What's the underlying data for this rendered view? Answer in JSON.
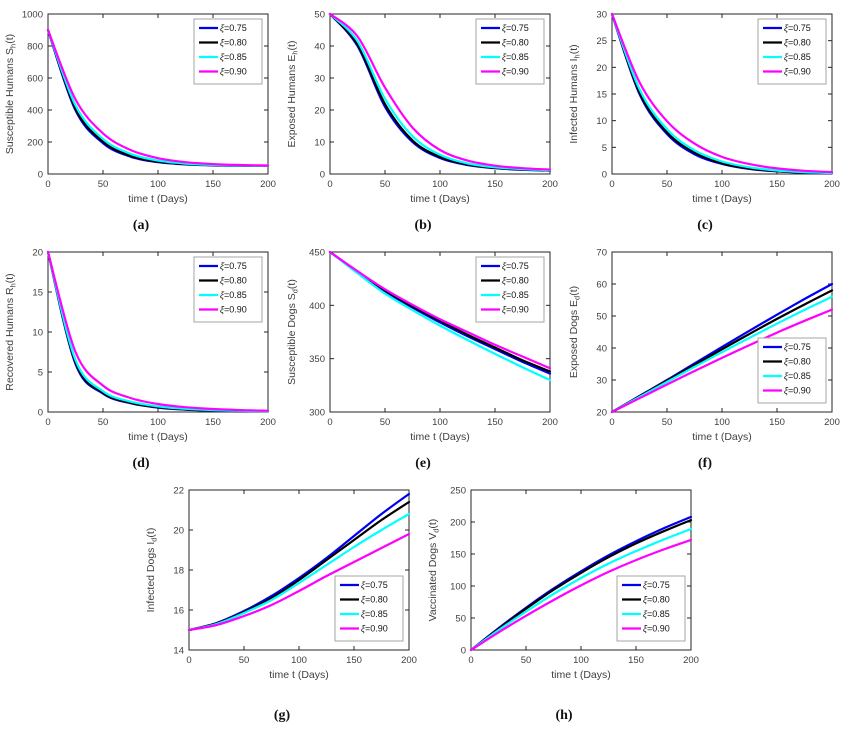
{
  "figure": {
    "background": "#ffffff",
    "axis_color": "#262626",
    "tick_label_color": "#404040",
    "legend_border_color": "#a6a6a6",
    "legend_background": "#ffffff"
  },
  "chart_data": [
    {
      "id": "a",
      "panel_label": "(a)",
      "type": "line",
      "title": "",
      "xlabel": "time t (Days)",
      "ylabel": {
        "text": "Susceptible Humans S",
        "sub": "h",
        "suffix": "(t)"
      },
      "xlim": [
        0,
        200
      ],
      "ylim": [
        0,
        1000
      ],
      "xticks": [
        0,
        50,
        100,
        150,
        200
      ],
      "yticks": [
        0,
        200,
        400,
        600,
        800,
        1000
      ],
      "legend_pos": "ne",
      "x": [
        0,
        25,
        50,
        75,
        100,
        125,
        150,
        175,
        200
      ],
      "series": [
        {
          "name": "ξ=0.75",
          "color": "#0000F0",
          "values": [
            900,
            398,
            193,
            108,
            74,
            60,
            54,
            52,
            51
          ]
        },
        {
          "name": "ξ=0.80",
          "color": "#000000",
          "values": [
            900,
            409,
            202,
            114,
            77,
            61,
            55,
            52,
            51
          ]
        },
        {
          "name": "ξ=0.85",
          "color": "#00FFFF",
          "values": [
            900,
            429,
            219,
            126,
            84,
            65,
            57,
            53,
            51
          ]
        },
        {
          "name": "ξ=0.90",
          "color": "#FF00FF",
          "values": [
            900,
            466,
            254,
            150,
            99,
            74,
            62,
            56,
            53
          ]
        }
      ]
    },
    {
      "id": "b",
      "panel_label": "(b)",
      "type": "line",
      "title": "",
      "xlabel": "time t (Days)",
      "ylabel": {
        "text": "Exposed Humans E",
        "sub": "h",
        "suffix": "(t)"
      },
      "xlim": [
        0,
        200
      ],
      "ylim": [
        0,
        50
      ],
      "xticks": [
        0,
        50,
        100,
        150,
        200
      ],
      "yticks": [
        0,
        10,
        20,
        30,
        40,
        50
      ],
      "legend_pos": "ne",
      "x": [
        0,
        25,
        50,
        75,
        100,
        125,
        150,
        175,
        200
      ],
      "series": [
        {
          "name": "ξ=0.75",
          "color": "#0000F0",
          "values": [
            50,
            40,
            21,
            10,
            5,
            2.8,
            1.8,
            1.3,
            1.1
          ]
        },
        {
          "name": "ξ=0.80",
          "color": "#000000",
          "values": [
            50,
            40.5,
            21.8,
            10.5,
            5.3,
            3,
            1.9,
            1.4,
            1.1
          ]
        },
        {
          "name": "ξ=0.85",
          "color": "#00FFFF",
          "values": [
            50,
            41.5,
            23.5,
            11.8,
            6,
            3.3,
            2.1,
            1.5,
            1.2
          ]
        },
        {
          "name": "ξ=0.90",
          "color": "#FF00FF",
          "values": [
            50,
            43,
            27,
            14.5,
            7.5,
            4.2,
            2.6,
            1.8,
            1.4
          ]
        }
      ]
    },
    {
      "id": "c",
      "panel_label": "(c)",
      "type": "line",
      "title": "",
      "xlabel": "time t (Days)",
      "ylabel": {
        "text": "Infected Humans I",
        "sub": "h",
        "suffix": "(t)"
      },
      "xlim": [
        0,
        200
      ],
      "ylim": [
        0,
        30
      ],
      "xticks": [
        0,
        50,
        100,
        150,
        200
      ],
      "yticks": [
        0,
        5,
        10,
        15,
        20,
        25,
        30
      ],
      "legend_pos": "ne",
      "x": [
        0,
        25,
        50,
        75,
        100,
        125,
        150,
        175,
        200
      ],
      "series": [
        {
          "name": "ξ=0.75",
          "color": "#0000F0",
          "values": [
            30,
            15,
            7.5,
            3.7,
            1.9,
            0.95,
            0.5,
            0.25,
            0.15
          ]
        },
        {
          "name": "ξ=0.80",
          "color": "#000000",
          "values": [
            30,
            15.3,
            7.8,
            4,
            2,
            1,
            0.55,
            0.3,
            0.16
          ]
        },
        {
          "name": "ξ=0.85",
          "color": "#00FFFF",
          "values": [
            30,
            15.9,
            8.4,
            4.45,
            2.35,
            1.25,
            0.65,
            0.35,
            0.2
          ]
        },
        {
          "name": "ξ=0.90",
          "color": "#FF00FF",
          "values": [
            30,
            17.2,
            9.9,
            5.7,
            3.2,
            1.85,
            1.05,
            0.6,
            0.35
          ]
        }
      ]
    },
    {
      "id": "d",
      "panel_label": "(d)",
      "type": "line",
      "title": "",
      "xlabel": "time t (Days)",
      "ylabel": {
        "text": "Recovered Humans R",
        "sub": "h",
        "suffix": "(t)"
      },
      "xlim": [
        0,
        200
      ],
      "ylim": [
        0,
        20
      ],
      "xticks": [
        0,
        50,
        100,
        150,
        200
      ],
      "yticks": [
        0,
        5,
        10,
        15,
        20
      ],
      "legend_pos": "ne",
      "x": [
        0,
        25,
        50,
        75,
        100,
        125,
        150,
        175,
        200
      ],
      "series": [
        {
          "name": "ξ=0.75",
          "color": "#0000F0",
          "values": [
            20,
            6,
            2.3,
            1.1,
            0.55,
            0.3,
            0.18,
            0.1,
            0.07
          ]
        },
        {
          "name": "ξ=0.80",
          "color": "#000000",
          "values": [
            20,
            6.2,
            2.4,
            1.15,
            0.6,
            0.33,
            0.2,
            0.12,
            0.08
          ]
        },
        {
          "name": "ξ=0.85",
          "color": "#00FFFF",
          "values": [
            20,
            6.5,
            2.6,
            1.3,
            0.7,
            0.4,
            0.24,
            0.15,
            0.1
          ]
        },
        {
          "name": "ξ=0.90",
          "color": "#FF00FF",
          "values": [
            20,
            7.5,
            3.3,
            1.75,
            1,
            0.6,
            0.37,
            0.24,
            0.16
          ]
        }
      ]
    },
    {
      "id": "e",
      "panel_label": "(e)",
      "type": "line",
      "title": "",
      "xlabel": "time t (Days)",
      "ylabel": {
        "text": "Susceptible Dogs S",
        "sub": "d",
        "suffix": "(t)"
      },
      "xlim": [
        0,
        200
      ],
      "ylim": [
        300,
        450
      ],
      "xticks": [
        0,
        50,
        100,
        150,
        200
      ],
      "yticks": [
        300,
        350,
        400,
        450
      ],
      "legend_pos": "ne",
      "x": [
        0,
        25,
        50,
        75,
        100,
        125,
        150,
        175,
        200
      ],
      "series": [
        {
          "name": "ξ=0.75",
          "color": "#0000F0",
          "values": [
            450,
            431,
            413,
            398,
            384,
            371,
            359,
            347,
            336
          ]
        },
        {
          "name": "ξ=0.80",
          "color": "#000000",
          "values": [
            450,
            431.5,
            414,
            399,
            385.5,
            372.5,
            360.5,
            348.5,
            338
          ]
        },
        {
          "name": "ξ=0.85",
          "color": "#00FFFF",
          "values": [
            450,
            430,
            411,
            395.5,
            381,
            367.5,
            354.5,
            342,
            330
          ]
        },
        {
          "name": "ξ=0.90",
          "color": "#FF00FF",
          "values": [
            450,
            432,
            415,
            400.5,
            387,
            375,
            363,
            352,
            341
          ]
        }
      ]
    },
    {
      "id": "f",
      "panel_label": "(f)",
      "type": "line",
      "title": "",
      "xlabel": "time t (Days)",
      "ylabel": {
        "text": "Exposed Dogs E",
        "sub": "d",
        "suffix": "(t)"
      },
      "xlim": [
        0,
        200
      ],
      "ylim": [
        20,
        70
      ],
      "xticks": [
        0,
        50,
        100,
        150,
        200
      ],
      "yticks": [
        20,
        30,
        40,
        50,
        60,
        70
      ],
      "legend_pos": "se",
      "x": [
        0,
        25,
        50,
        75,
        100,
        125,
        150,
        175,
        200
      ],
      "series": [
        {
          "name": "ξ=0.75",
          "color": "#0000F0",
          "values": [
            20,
            25,
            30,
            35.2,
            40.3,
            45.4,
            50.4,
            55.3,
            60
          ]
        },
        {
          "name": "ξ=0.80",
          "color": "#000000",
          "values": [
            20,
            24.9,
            29.8,
            34.7,
            39.6,
            44.4,
            49.1,
            53.6,
            58
          ]
        },
        {
          "name": "ξ=0.85",
          "color": "#00FFFF",
          "values": [
            20,
            24.7,
            29.4,
            34.1,
            38.7,
            43.2,
            47.6,
            51.9,
            56
          ]
        },
        {
          "name": "ξ=0.90",
          "color": "#FF00FF",
          "values": [
            20,
            24.3,
            28.6,
            32.8,
            36.9,
            40.9,
            44.8,
            48.5,
            52
          ]
        }
      ]
    },
    {
      "id": "g",
      "panel_label": "(g)",
      "type": "line",
      "title": "",
      "xlabel": "time t (Days)",
      "ylabel": {
        "text": "Infected Dogs I",
        "sub": "d",
        "suffix": "(t)"
      },
      "xlim": [
        0,
        200
      ],
      "ylim": [
        14,
        22
      ],
      "xticks": [
        0,
        50,
        100,
        150,
        200
      ],
      "yticks": [
        14,
        16,
        18,
        20,
        22
      ],
      "legend_pos": "se",
      "x": [
        0,
        25,
        50,
        75,
        100,
        125,
        150,
        175,
        200
      ],
      "series": [
        {
          "name": "ξ=0.75",
          "color": "#0000F0",
          "values": [
            15,
            15.35,
            15.95,
            16.7,
            17.6,
            18.6,
            19.7,
            20.8,
            21.8
          ]
        },
        {
          "name": "ξ=0.80",
          "color": "#000000",
          "values": [
            15,
            15.33,
            15.9,
            16.6,
            17.5,
            18.5,
            19.5,
            20.5,
            21.4
          ]
        },
        {
          "name": "ξ=0.85",
          "color": "#00FFFF",
          "values": [
            15,
            15.3,
            15.85,
            16.5,
            17.35,
            18.25,
            19.15,
            20,
            20.8
          ]
        },
        {
          "name": "ξ=0.90",
          "color": "#FF00FF",
          "values": [
            15,
            15.25,
            15.7,
            16.25,
            16.95,
            17.7,
            18.4,
            19.1,
            19.8
          ]
        }
      ]
    },
    {
      "id": "h",
      "panel_label": "(h)",
      "type": "line",
      "title": "",
      "xlabel": "time t (Days)",
      "ylabel": {
        "text": "Vaccinated Dogs V",
        "sub": "d",
        "suffix": "(t)"
      },
      "xlim": [
        0,
        200
      ],
      "ylim": [
        0,
        250
      ],
      "xticks": [
        0,
        50,
        100,
        150,
        200
      ],
      "yticks": [
        0,
        50,
        100,
        150,
        200,
        250
      ],
      "legend_pos": "se",
      "x": [
        0,
        25,
        50,
        75,
        100,
        125,
        150,
        175,
        200
      ],
      "series": [
        {
          "name": "ξ=0.75",
          "color": "#0000F0",
          "values": [
            0,
            34,
            66,
            96,
            123,
            148,
            170,
            190,
            208
          ]
        },
        {
          "name": "ξ=0.80",
          "color": "#000000",
          "values": [
            0,
            33,
            64.5,
            94,
            120.5,
            145,
            166.5,
            185.5,
            203
          ]
        },
        {
          "name": "ξ=0.85",
          "color": "#00FFFF",
          "values": [
            0,
            31,
            60,
            87.5,
            112.5,
            135,
            154.5,
            172.5,
            189
          ]
        },
        {
          "name": "ξ=0.90",
          "color": "#FF00FF",
          "values": [
            0,
            27.5,
            53.5,
            78,
            101,
            122,
            140.5,
            157,
            172
          ]
        }
      ]
    }
  ]
}
